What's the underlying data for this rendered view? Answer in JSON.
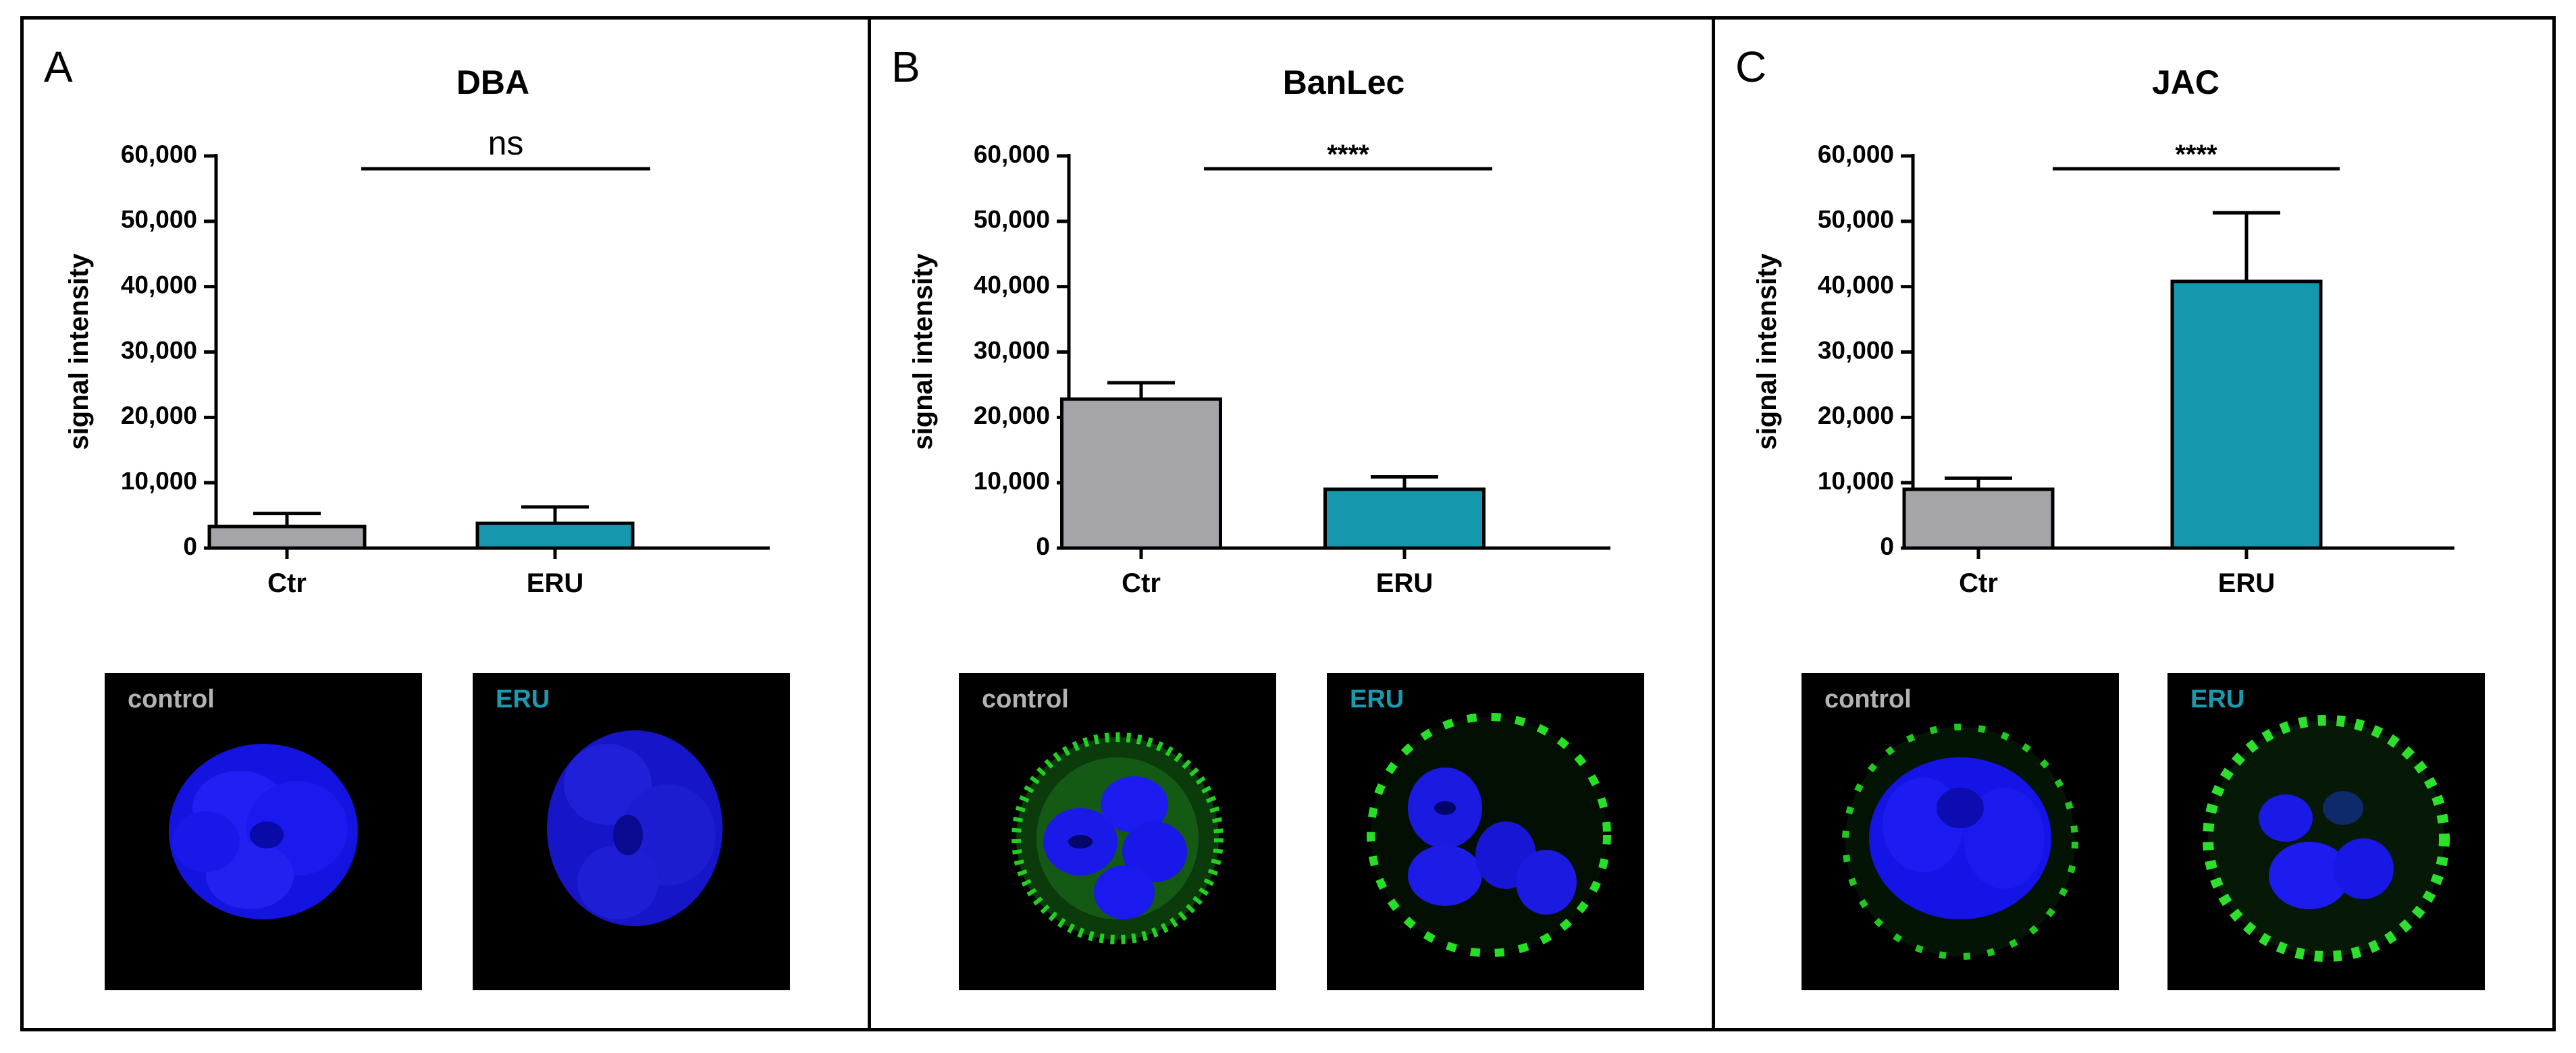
{
  "colors": {
    "control": "#a5a4a9",
    "eru": "#1597ae",
    "control_label": "#b3b3b3",
    "eru_label": "#1a9aae",
    "nucleus": "#1010e8",
    "lectin": "#22d022"
  },
  "y_ticks": [
    "0",
    "10,000",
    "20,000",
    "30,000",
    "40,000",
    "50,000",
    "60,000"
  ],
  "panels": [
    {
      "letter": "A",
      "micro_control_label": "control",
      "micro_eru_label": "ERU"
    },
    {
      "letter": "B",
      "micro_control_label": "control",
      "micro_eru_label": "ERU"
    },
    {
      "letter": "C",
      "micro_control_label": "control",
      "micro_eru_label": "ERU"
    }
  ],
  "chart_data": [
    {
      "type": "bar",
      "title": "DBA",
      "ylabel": "signal intensity",
      "xlabel": "",
      "categories": [
        "Ctr",
        "ERU"
      ],
      "values": [
        3300,
        3800
      ],
      "errors": [
        2000,
        2500
      ],
      "ylim": [
        0,
        60000
      ],
      "significance": "ns"
    },
    {
      "type": "bar",
      "title": "BanLec",
      "ylabel": "signal intensity",
      "xlabel": "",
      "categories": [
        "Ctr",
        "ERU"
      ],
      "values": [
        22800,
        9000
      ],
      "errors": [
        2500,
        1900
      ],
      "ylim": [
        0,
        60000
      ],
      "significance": "****"
    },
    {
      "type": "bar",
      "title": "JAC",
      "ylabel": "signal intensity",
      "xlabel": "",
      "categories": [
        "Ctr",
        "ERU"
      ],
      "values": [
        9000,
        40800
      ],
      "errors": [
        1700,
        10500
      ],
      "ylim": [
        0,
        60000
      ],
      "significance": "****"
    }
  ]
}
